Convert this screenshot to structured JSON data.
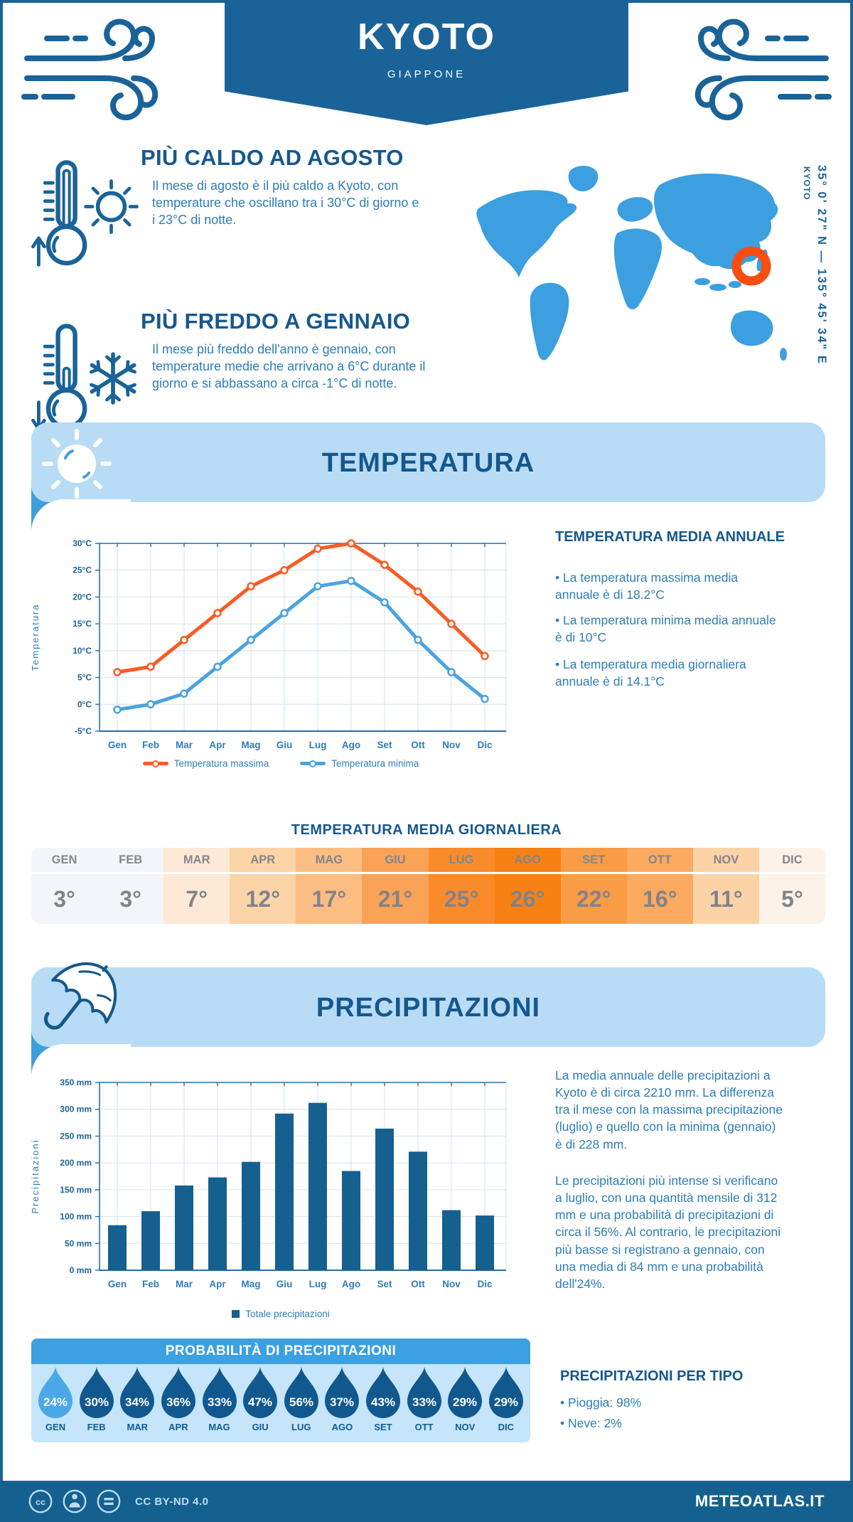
{
  "header": {
    "title": "KYOTO",
    "subtitle": "GIAPPONE"
  },
  "highlights": {
    "hot": {
      "title": "PIÙ CALDO AD AGOSTO",
      "text": "Il mese di agosto è il più caldo a Kyoto, con temperature che oscillano tra i 30°C di giorno e i 23°C di notte."
    },
    "cold": {
      "title": "PIÙ FREDDO A GENNAIO",
      "text": "Il mese più freddo dell'anno è gennaio, con temperature medie che arrivano a 6°C durante il giorno e si abbassano a circa -1°C di notte."
    }
  },
  "map": {
    "coordinates": "35° 0' 27\" N — 135° 45' 34\" E",
    "label": "KYOTO",
    "marker_color": "#f94d12",
    "land_color": "#3b9fe0"
  },
  "temperature": {
    "banner_title": "TEMPERATURA",
    "annual": {
      "title": "TEMPERATURA MEDIA ANNUALE",
      "bullets": [
        "La temperatura massima media annuale è di 18.2°C",
        "La temperatura minima media annuale è di 10°C",
        "La temperatura media giornaliera annuale è di 14.1°C"
      ]
    },
    "daily_title": "TEMPERATURA MEDIA GIORNALIERA",
    "daily": {
      "months": [
        "GEN",
        "FEB",
        "MAR",
        "APR",
        "MAG",
        "GIU",
        "LUG",
        "AGO",
        "SET",
        "OTT",
        "NOV",
        "DIC"
      ],
      "values": [
        "3°",
        "3°",
        "7°",
        "12°",
        "17°",
        "21°",
        "25°",
        "26°",
        "22°",
        "16°",
        "11°",
        "5°"
      ],
      "colors": [
        "#f4f5fa",
        "#f4f5fa",
        "#fde9d6",
        "#fbd4a8",
        "#fbbd81",
        "#faa255",
        "#f98b2b",
        "#f88114",
        "#f99c45",
        "#fbaa60",
        "#fcd3a6",
        "#fdf2e7"
      ]
    }
  },
  "precipitation": {
    "banner_title": "PRECIPITAZIONI",
    "text1": "La media annuale delle precipitazioni a Kyoto è di circa 2210 mm. La differenza tra il mese con la massima precipitazione (luglio) e quello con la minima (gennaio) è di 228 mm.",
    "text2": "Le precipitazioni più intense si verificano a luglio, con una quantità mensile di 312 mm e una probabilità di precipitazioni di circa il 56%. Al contrario, le precipitazioni più basse si registrano a gennaio, con una media di 84 mm e una probabilità dell'24%.",
    "probability": {
      "title": "PROBABILITÀ DI PRECIPITAZIONI",
      "months": [
        "GEN",
        "FEB",
        "MAR",
        "APR",
        "MAG",
        "GIU",
        "LUG",
        "AGO",
        "SET",
        "OTT",
        "NOV",
        "DIC"
      ],
      "values": [
        24,
        30,
        34,
        36,
        33,
        47,
        56,
        37,
        43,
        33,
        29,
        29
      ],
      "drop_color": "#11588f",
      "drop_color_highlight": "#4aa8e8",
      "highlight_index": 0
    },
    "by_type": {
      "title": "PRECIPITAZIONI PER TIPO",
      "items": [
        "Pioggia: 98%",
        "Neve: 2%"
      ]
    }
  },
  "footer": {
    "license": "CC BY-ND 4.0",
    "site": "METEOATLAS.IT"
  },
  "chart_data": [
    {
      "type": "line",
      "categories": [
        "Gen",
        "Feb",
        "Mar",
        "Apr",
        "Mag",
        "Giu",
        "Lug",
        "Ago",
        "Set",
        "Ott",
        "Nov",
        "Dic"
      ],
      "series": [
        {
          "name": "Temperatura massima",
          "color": "#f95b25",
          "values": [
            6,
            7,
            12,
            17,
            22,
            25,
            29,
            30,
            26,
            21,
            15,
            9
          ]
        },
        {
          "name": "Temperatura minima",
          "color": "#4aa3e0",
          "values": [
            -1,
            0,
            2,
            7,
            12,
            17,
            22,
            23,
            19,
            12,
            6,
            1
          ]
        }
      ],
      "ylabel": "Temperatura",
      "ylim": [
        -5,
        30
      ],
      "ytick_step": 5,
      "ytick_suffix": "°C",
      "grid": true,
      "legend_position": "bottom"
    },
    {
      "type": "bar",
      "name": "Totale precipitazioni",
      "color": "#15608f",
      "categories": [
        "Gen",
        "Feb",
        "Mar",
        "Apr",
        "Mag",
        "Giu",
        "Lug",
        "Ago",
        "Set",
        "Ott",
        "Nov",
        "Dic"
      ],
      "values": [
        84,
        110,
        158,
        173,
        202,
        292,
        312,
        185,
        264,
        221,
        112,
        102
      ],
      "ylabel": "Precipitazioni",
      "ylim": [
        0,
        350
      ],
      "ytick_step": 50,
      "ytick_suffix": " mm",
      "grid": true,
      "legend_position": "bottom"
    }
  ]
}
